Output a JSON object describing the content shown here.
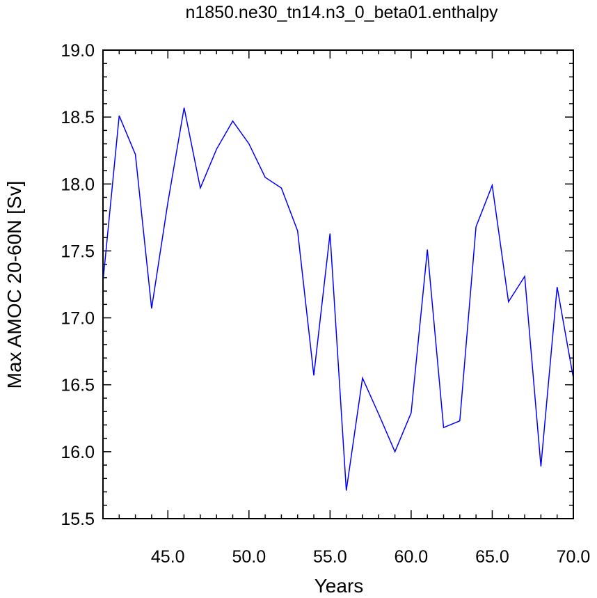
{
  "chart_data": {
    "type": "line",
    "title": "n1850.ne30_tn14.n3_0_beta01.enthalpy",
    "xlabel": "Years",
    "ylabel": "Max AMOC 20-60N [Sv]",
    "xlim": [
      41,
      70
    ],
    "ylim": [
      15.5,
      19.0
    ],
    "xticks": [
      45,
      50,
      55,
      60,
      65,
      70
    ],
    "xtick_labels": [
      "45.0",
      "50.0",
      "55.0",
      "60.0",
      "65.0",
      "70.0"
    ],
    "yticks": [
      15.5,
      16.0,
      16.5,
      17.0,
      17.5,
      18.0,
      18.5,
      19.0
    ],
    "ytick_labels": [
      "15.5",
      "16.0",
      "16.5",
      "17.0",
      "17.5",
      "18.0",
      "18.5",
      "19.0"
    ],
    "grid": false,
    "line_color": "#0000ff",
    "x": [
      41,
      42,
      43,
      44,
      45,
      46,
      47,
      48,
      49,
      50,
      51,
      52,
      53,
      54,
      55,
      56,
      57,
      58,
      59,
      60,
      61,
      62,
      63,
      64,
      65,
      66,
      67,
      68,
      69,
      70
    ],
    "y": [
      17.27,
      18.51,
      18.22,
      17.07,
      17.86,
      18.57,
      17.97,
      18.26,
      18.47,
      18.3,
      18.05,
      17.97,
      17.65,
      16.57,
      17.63,
      15.71,
      16.55,
      16.28,
      16.0,
      16.29,
      17.51,
      16.18,
      16.23,
      17.68,
      17.99,
      17.12,
      17.31,
      15.89,
      17.23,
      16.55
    ]
  }
}
